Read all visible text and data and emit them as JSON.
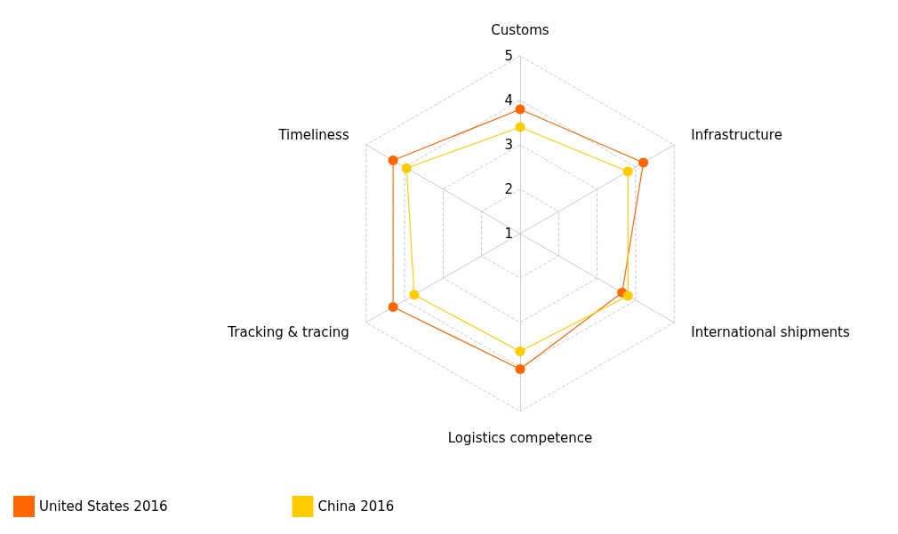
{
  "chart_data": {
    "type": "radar",
    "categories": [
      "Customs",
      "Infrastructure",
      "International shipments",
      "Logistics competence",
      "Tracking & tracing",
      "Timeliness"
    ],
    "ylim": [
      1,
      5
    ],
    "yticks": [
      1,
      2,
      3,
      4,
      5
    ],
    "grid": true,
    "marker": "circle",
    "legend": "bottom left",
    "series": [
      {
        "name": "United States 2016",
        "color": "#ff6600",
        "values": [
          3.8,
          4.2,
          3.65,
          4.05,
          4.3,
          4.3
        ]
      },
      {
        "name": "China 2016",
        "color": "#ffcc00",
        "values": [
          3.4,
          3.8,
          3.8,
          3.65,
          3.75,
          3.95
        ]
      }
    ]
  }
}
